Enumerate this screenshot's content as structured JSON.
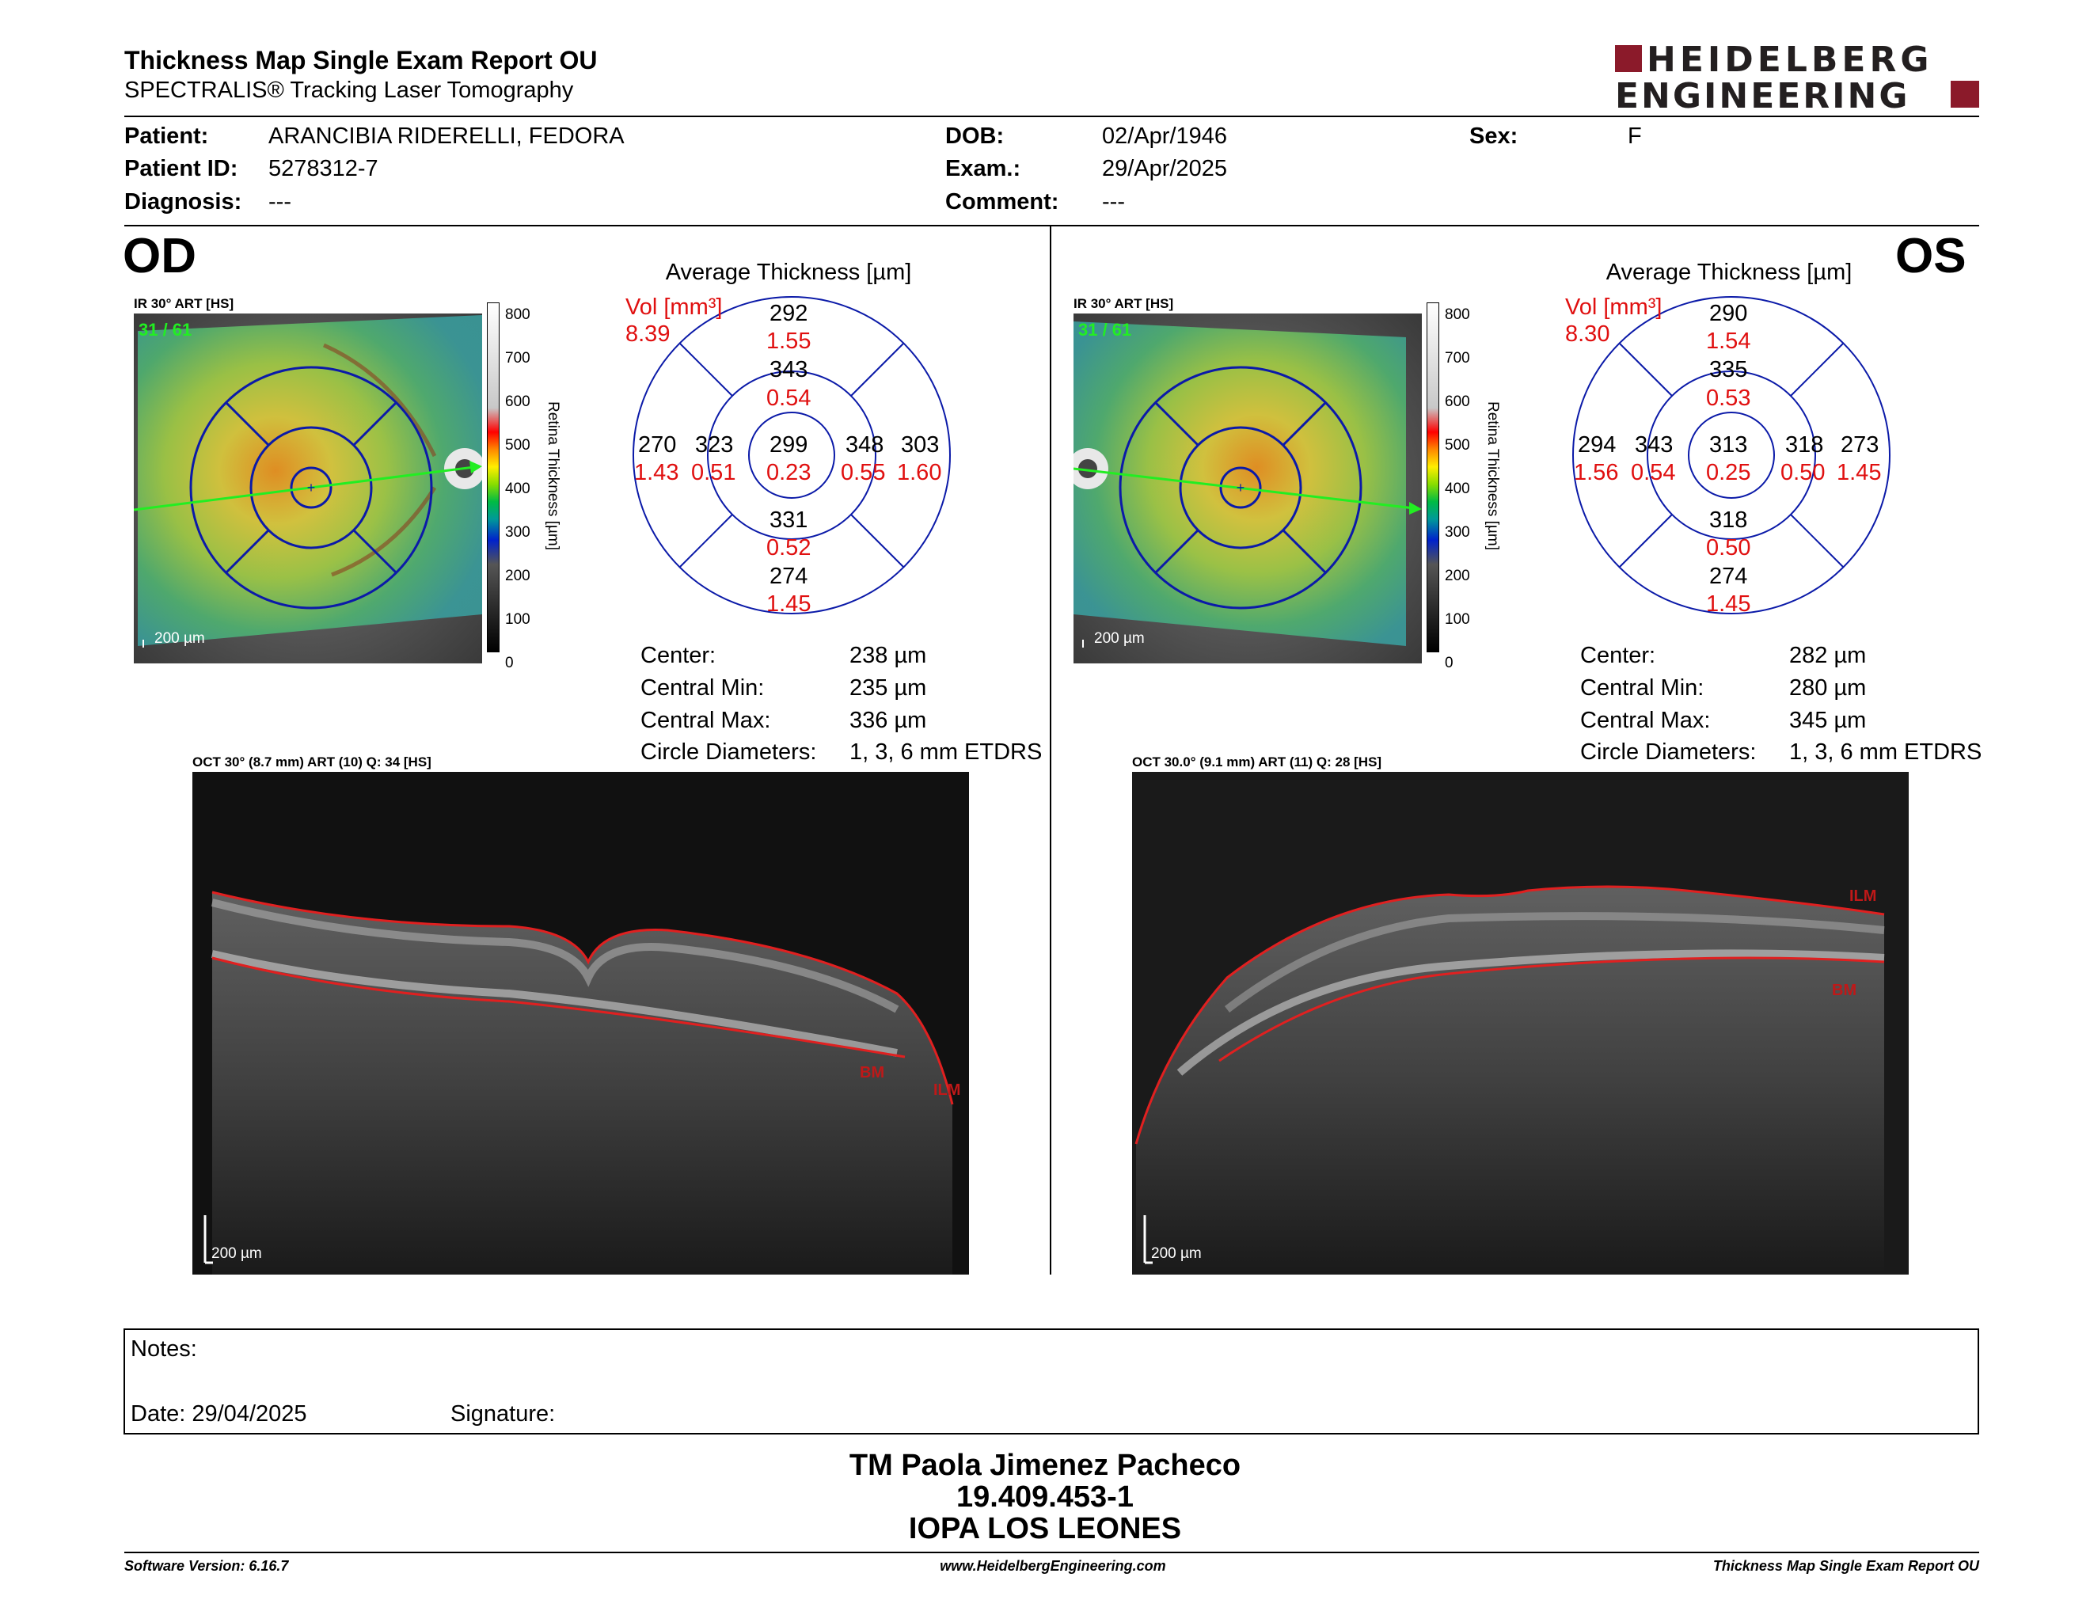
{
  "header": {
    "title": "Thickness Map Single Exam Report OU",
    "subtitle": "SPECTRALIS® Tracking Laser Tomography",
    "logo_line1": "HEIDELBERG",
    "logo_line2": "ENGINEERING",
    "logo_color": "#8b1a2a"
  },
  "patient": {
    "patient_label": "Patient:",
    "patient_value": "ARANCIBIA RIDERELLI, FEDORA",
    "id_label": "Patient ID:",
    "id_value": "5278312-7",
    "diagnosis_label": "Diagnosis:",
    "diagnosis_value": "---",
    "dob_label": "DOB:",
    "dob_value": "02/Apr/1946",
    "exam_label": "Exam.:",
    "exam_value": "29/Apr/2025",
    "comment_label": "Comment:",
    "comment_value": "---",
    "sex_label": "Sex:",
    "sex_value": "F"
  },
  "od": {
    "eye_label": "OD",
    "ir_caption": "IR 30° ART [HS]",
    "frame_label": "31 / 61",
    "scale_label": "200 µm",
    "avg_title": "Average Thickness [µm]",
    "vol_label": "Vol [mm³]",
    "vol_value": "8.39",
    "grid": {
      "outer_superior": "292",
      "outer_superior_vol": "1.55",
      "inner_superior": "343",
      "inner_superior_vol": "0.54",
      "outer_nasal_or_left": "270",
      "outer_left_vol": "1.43",
      "inner_left": "323",
      "inner_left_vol": "0.51",
      "center": "299",
      "center_vol": "0.23",
      "inner_right": "348",
      "inner_right_vol": "0.55",
      "outer_right": "303",
      "outer_right_vol": "1.60",
      "inner_inferior": "331",
      "inner_inferior_vol": "0.52",
      "outer_inferior": "274",
      "outer_inferior_vol": "1.45"
    },
    "stats": {
      "center_label": "Center:",
      "center_value": "238 µm",
      "min_label": "Central Min:",
      "min_value": "235 µm",
      "max_label": "Central Max:",
      "max_value": "336 µm",
      "circ_label": "Circle Diameters:",
      "circ_value": "1, 3, 6 mm ETDRS"
    },
    "oct_caption": "OCT 30° (8.7 mm) ART (10) Q: 34 [HS]",
    "oct_scale": "200 µm",
    "layer_bm": "BM",
    "layer_ilm": "ILM"
  },
  "os": {
    "eye_label": "OS",
    "ir_caption": "IR 30° ART [HS]",
    "frame_label": "31 / 61",
    "scale_label": "200 µm",
    "avg_title": "Average Thickness [µm]",
    "vol_label": "Vol [mm³]",
    "vol_value": "8.30",
    "grid": {
      "outer_superior": "290",
      "outer_superior_vol": "1.54",
      "inner_superior": "335",
      "inner_superior_vol": "0.53",
      "outer_nasal_or_left": "294",
      "outer_left_vol": "1.56",
      "inner_left": "343",
      "inner_left_vol": "0.54",
      "center": "313",
      "center_vol": "0.25",
      "inner_right": "318",
      "inner_right_vol": "0.50",
      "outer_right": "273",
      "outer_right_vol": "1.45",
      "inner_inferior": "318",
      "inner_inferior_vol": "0.50",
      "outer_inferior": "274",
      "outer_inferior_vol": "1.45"
    },
    "stats": {
      "center_label": "Center:",
      "center_value": "282 µm",
      "min_label": "Central Min:",
      "min_value": "280 µm",
      "max_label": "Central Max:",
      "max_value": "345 µm",
      "circ_label": "Circle Diameters:",
      "circ_value": "1, 3, 6 mm ETDRS"
    },
    "oct_caption": "OCT 30.0° (9.1 mm) ART (11) Q: 28 [HS]",
    "oct_scale": "200 µm",
    "layer_bm": "BM",
    "layer_ilm": "ILM"
  },
  "colorbar": {
    "ticks": [
      "800",
      "700",
      "600",
      "500",
      "400",
      "300",
      "200",
      "100",
      "0"
    ],
    "title": "Retina Thickness [µm]"
  },
  "notes": {
    "notes_label": "Notes:",
    "date_label": "Date: 29/04/2025",
    "signature_label": "Signature:"
  },
  "signature_block": {
    "name": "TM Paola Jimenez Pacheco",
    "id": "19.409.453-1",
    "org": "IOPA LOS LEONES"
  },
  "footer": {
    "version": "Software Version: 6.16.7",
    "url": "www.HeidelbergEngineering.com",
    "report": "Thickness Map Single Exam Report OU"
  }
}
